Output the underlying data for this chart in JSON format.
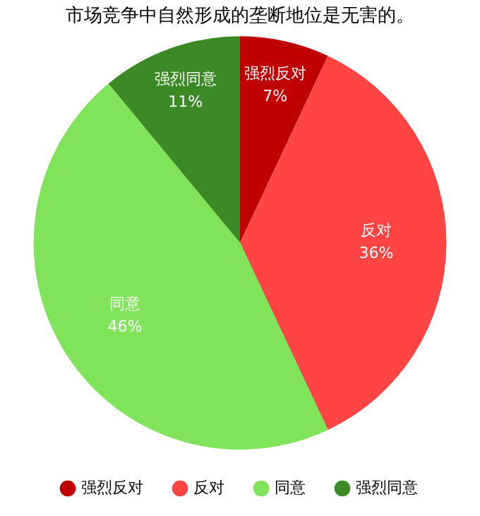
{
  "chart_data": {
    "type": "pie",
    "title": "市场竞争中自然形成的垄断地位是无害的。",
    "categories": [
      "强烈反对",
      "反对",
      "同意",
      "强烈同意"
    ],
    "values": [
      7,
      36,
      46,
      11
    ],
    "value_labels": [
      "7%",
      "36%",
      "46%",
      "11%"
    ],
    "colors": [
      "#c00000",
      "#ff4444",
      "#80e45a",
      "#3b8a26"
    ],
    "legend": "bottom"
  }
}
